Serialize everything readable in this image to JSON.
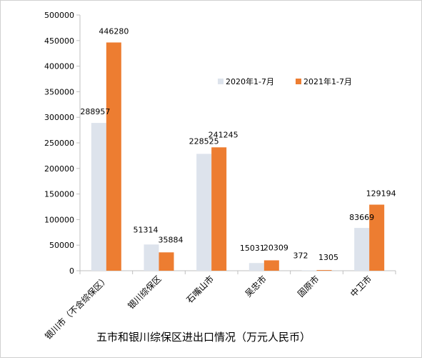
{
  "chart_data": {
    "type": "bar",
    "title": "五市和银川综保区进出口情况（万元人民币）",
    "xlabel": "",
    "ylabel": "",
    "categories": [
      "银川市（不含综保区）",
      "银川综保区",
      "石嘴山市",
      "吴忠市",
      "固原市",
      "中卫市"
    ],
    "series": [
      {
        "name": "2020年1-7月",
        "color": "#dde3ec",
        "values": [
          288957,
          51314,
          228525,
          15031,
          372,
          83669
        ]
      },
      {
        "name": "2021年1-7月",
        "color": "#ed7d31",
        "values": [
          446280,
          35884,
          241245,
          20309,
          1305,
          129194
        ]
      }
    ],
    "ylim": [
      0,
      500000
    ],
    "yticks": [
      0,
      50000,
      100000,
      150000,
      200000,
      250000,
      300000,
      350000,
      400000,
      450000,
      500000
    ],
    "grid": false,
    "legend_position": "top-right"
  }
}
